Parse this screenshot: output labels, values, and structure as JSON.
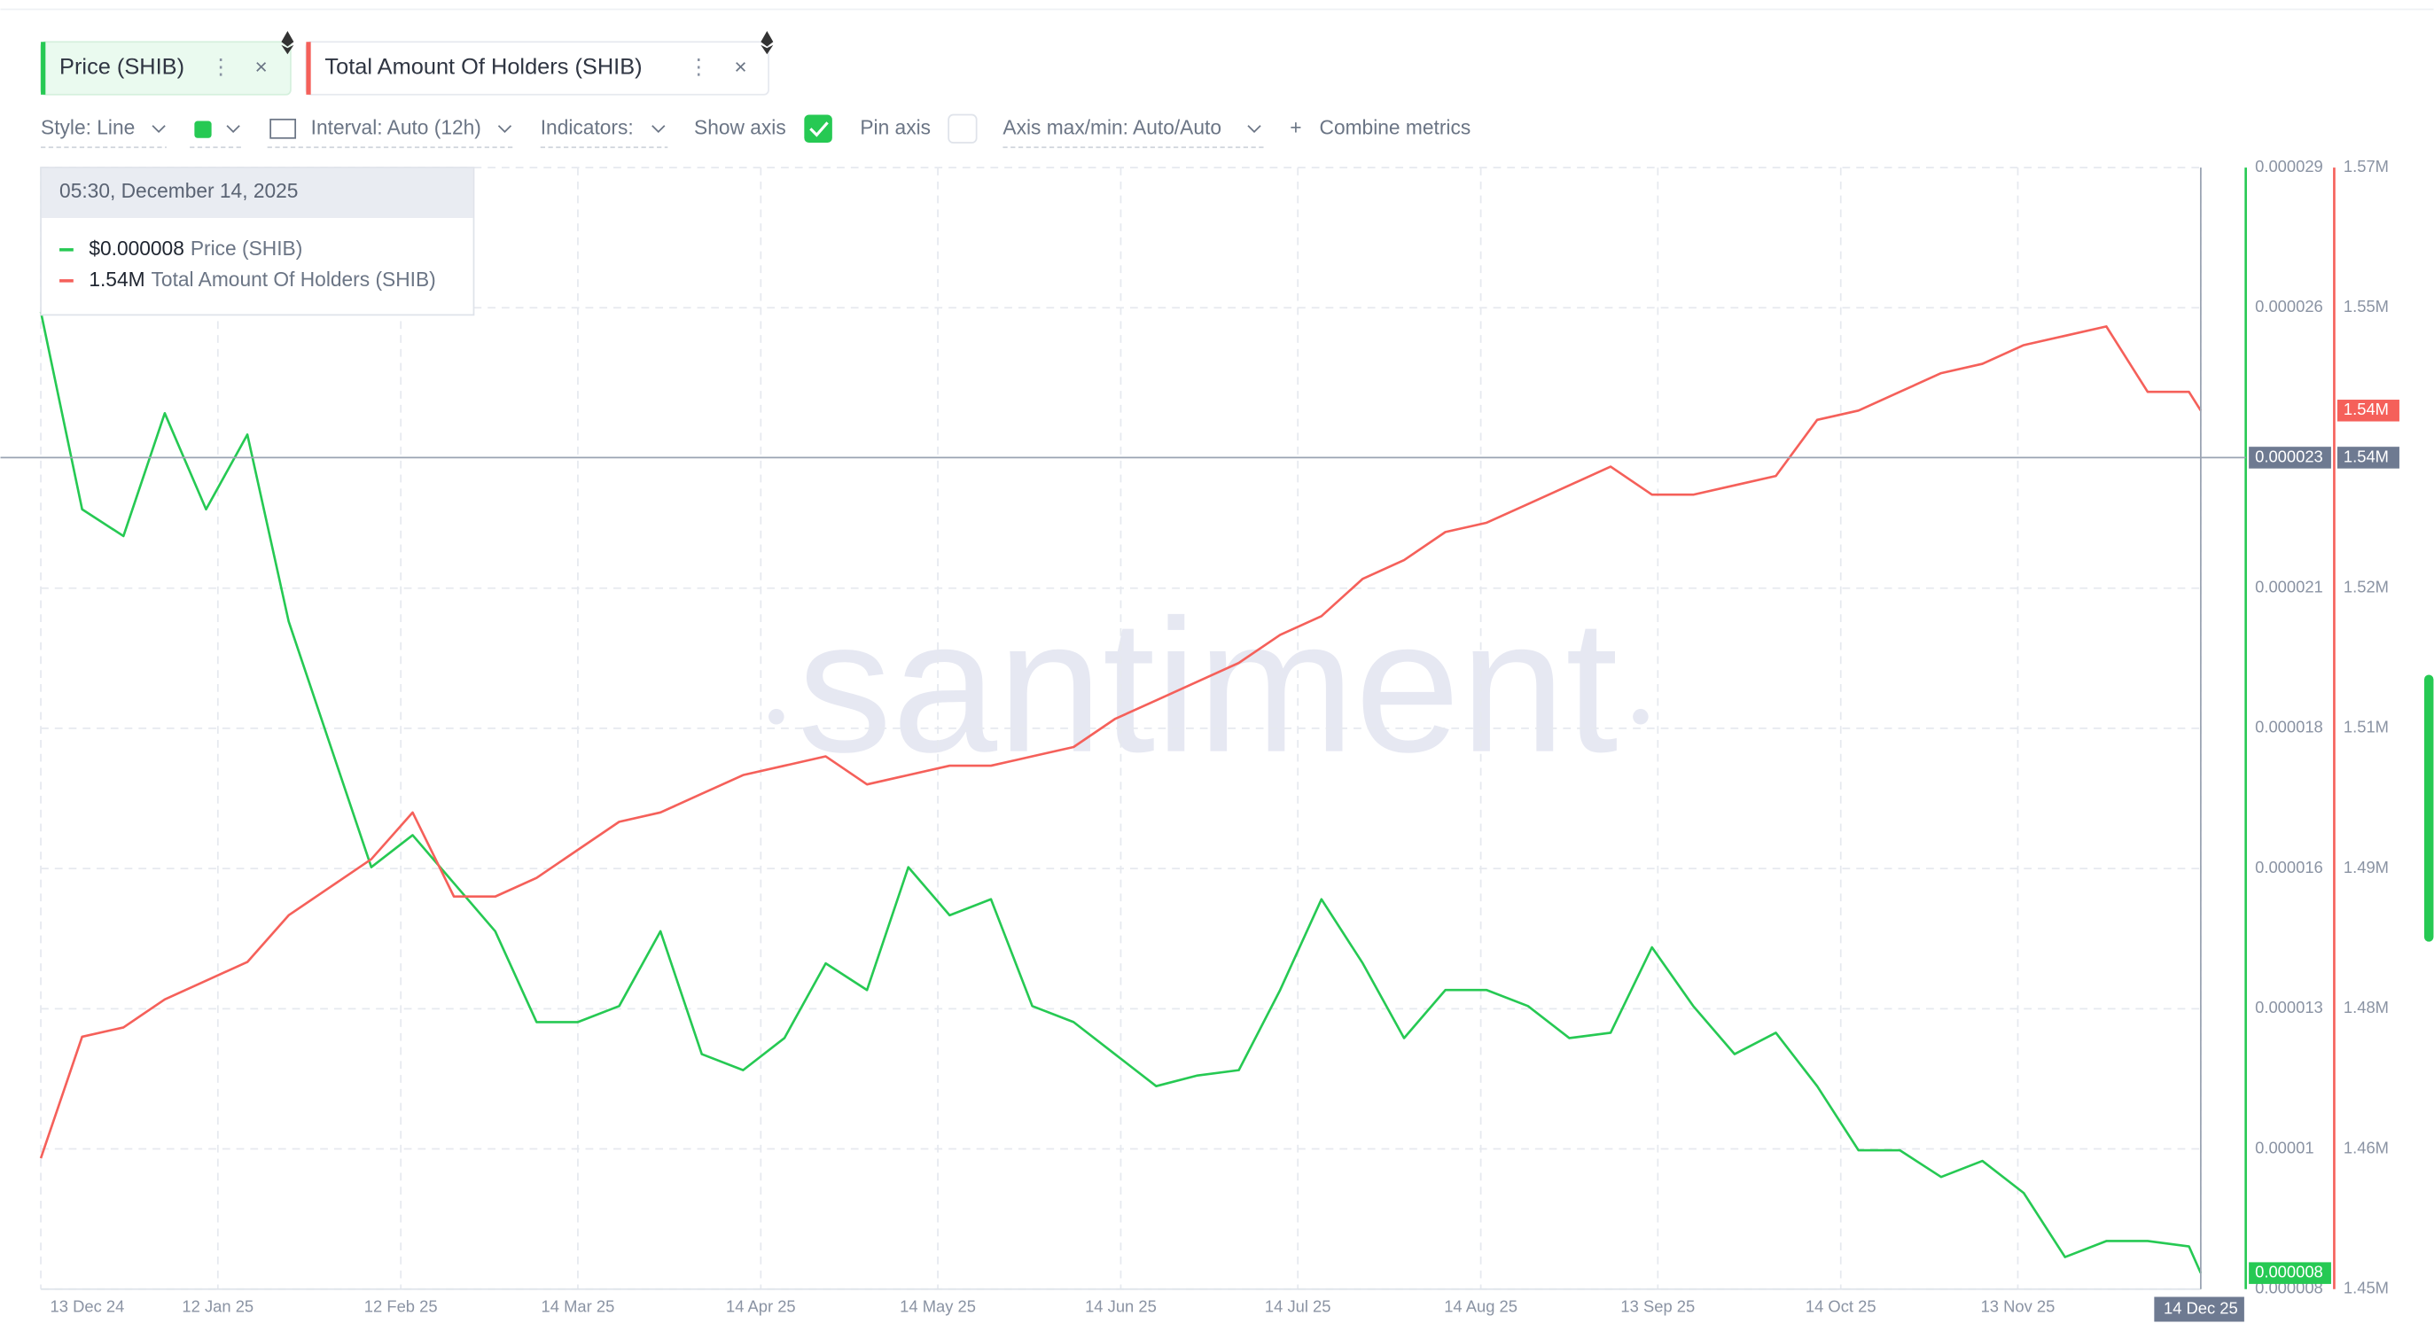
{
  "chart_data": {
    "type": "line",
    "watermark": "santiment",
    "metrics": [
      "Price (SHIB)",
      "Total Amount Of Holders (SHIB)"
    ],
    "toolbar": {
      "style": "Style: Line",
      "interval": "Interval: Auto (12h)",
      "indicators": "Indicators:",
      "show_axis": "Show axis",
      "pin_axis": "Pin axis",
      "axis_range": "Axis max/min: Auto/Auto",
      "combine": "Combine metrics"
    },
    "tooltip": {
      "time": "05:30, December 14, 2025",
      "values": [
        "$0.000008",
        "1.54M"
      ]
    },
    "cursor": {
      "y": "0.000023",
      "y2": "1.54M"
    },
    "x": [
      "13 Dec 24",
      "20 Dec 24",
      "27 Dec 24",
      "3 Jan 25",
      "10 Jan 25",
      "17 Jan 25",
      "24 Jan 25",
      "31 Jan 25",
      "7 Feb 25",
      "14 Feb 25",
      "21 Feb 25",
      "28 Feb 25",
      "7 Mar 25",
      "14 Mar 25",
      "21 Mar 25",
      "28 Mar 25",
      "4 Apr 25",
      "11 Apr 25",
      "18 Apr 25",
      "25 Apr 25",
      "2 May 25",
      "9 May 25",
      "16 May 25",
      "23 May 25",
      "30 May 25",
      "6 Jun 25",
      "13 Jun 25",
      "20 Jun 25",
      "27 Jun 25",
      "4 Jul 25",
      "11 Jul 25",
      "18 Jul 25",
      "25 Jul 25",
      "1 Aug 25",
      "8 Aug 25",
      "15 Aug 25",
      "22 Aug 25",
      "29 Aug 25",
      "5 Sep 25",
      "12 Sep 25",
      "19 Sep 25",
      "26 Sep 25",
      "3 Oct 25",
      "10 Oct 25",
      "17 Oct 25",
      "24 Oct 25",
      "31 Oct 25",
      "7 Nov 25",
      "14 Nov 25",
      "21 Nov 25",
      "28 Nov 25",
      "5 Dec 25",
      "12 Dec 25",
      "14 Dec 25"
    ],
    "series": [
      {
        "name": "Price (SHIB)",
        "color": "#26c953",
        "axis": "y",
        "current_label": "0.000008",
        "values": [
          2.63e-05,
          2.26e-05,
          2.21e-05,
          2.44e-05,
          2.26e-05,
          2.4e-05,
          2.05e-05,
          1.82e-05,
          1.59e-05,
          1.65e-05,
          1.56e-05,
          1.47e-05,
          1.3e-05,
          1.3e-05,
          1.33e-05,
          1.47e-05,
          1.24e-05,
          1.21e-05,
          1.27e-05,
          1.41e-05,
          1.36e-05,
          1.59e-05,
          1.5e-05,
          1.53e-05,
          1.33e-05,
          1.3e-05,
          1.24e-05,
          1.18e-05,
          1.2e-05,
          1.21e-05,
          1.36e-05,
          1.53e-05,
          1.41e-05,
          1.27e-05,
          1.36e-05,
          1.36e-05,
          1.33e-05,
          1.27e-05,
          1.28e-05,
          1.44e-05,
          1.33e-05,
          1.24e-05,
          1.28e-05,
          1.18e-05,
          1.06e-05,
          1.06e-05,
          1.01e-05,
          1.04e-05,
          9.8e-06,
          8.6e-06,
          8.9e-06,
          8.9e-06,
          8.8e-06,
          8.3e-06
        ]
      },
      {
        "name": "Total Amount Of Holders (SHIB)",
        "color": "#f5605a",
        "axis": "y2",
        "current_label": "1.54M",
        "values": [
          1464000,
          1477000,
          1478000,
          1481000,
          1483000,
          1485000,
          1490000,
          1493000,
          1496000,
          1501000,
          1492000,
          1492000,
          1494000,
          1497000,
          1500000,
          1501000,
          1503000,
          1505000,
          1506000,
          1507000,
          1504000,
          1505000,
          1506000,
          1506000,
          1507000,
          1508000,
          1511000,
          1513000,
          1515000,
          1517000,
          1520000,
          1522000,
          1526000,
          1528000,
          1531000,
          1532000,
          1534000,
          1536000,
          1538000,
          1535000,
          1535000,
          1536000,
          1537000,
          1543000,
          1544000,
          1546000,
          1548000,
          1549000,
          1551000,
          1552000,
          1553000,
          1546000,
          1546000,
          1544000
        ]
      }
    ],
    "xlim": [
      "13 Dec 24",
      "14 Dec 25"
    ],
    "xticks": [
      "13 Dec 24",
      "12 Jan 25",
      "12 Feb 25",
      "14 Mar 25",
      "14 Apr 25",
      "14 May 25",
      "14 Jun 25",
      "14 Jul 25",
      "14 Aug 25",
      "13 Sep 25",
      "14 Oct 25",
      "13 Nov 25",
      "14 Dec 25"
    ],
    "ylim": [
      8e-06,
      2.9e-05
    ],
    "yticks": [
      8e-06,
      {
        "value": 1.0625e-05,
        "label": "0.00001"
      },
      {
        "value": 1.325e-05,
        "label": "0.000013"
      },
      {
        "value": 1.5875e-05,
        "label": "0.000016"
      },
      {
        "value": 1.85e-05,
        "label": "0.000018"
      },
      {
        "value": 2.1125e-05,
        "label": "0.000021"
      },
      {
        "value": 2.6375e-05,
        "label": "0.000026"
      },
      2.9e-05
    ],
    "y2lim": [
      1450000,
      1570000
    ],
    "y2ticks": [
      {
        "value": 1450000,
        "label": "1.45M"
      },
      {
        "value": 1465000,
        "label": "1.46M"
      },
      {
        "value": 1480000,
        "label": "1.48M"
      },
      {
        "value": 1495000,
        "label": "1.49M"
      },
      {
        "value": 1510000,
        "label": "1.51M"
      },
      {
        "value": 1525000,
        "label": "1.52M"
      },
      {
        "value": 1555000,
        "label": "1.55M"
      },
      {
        "value": 1570000,
        "label": "1.57M"
      }
    ],
    "grid": true
  }
}
